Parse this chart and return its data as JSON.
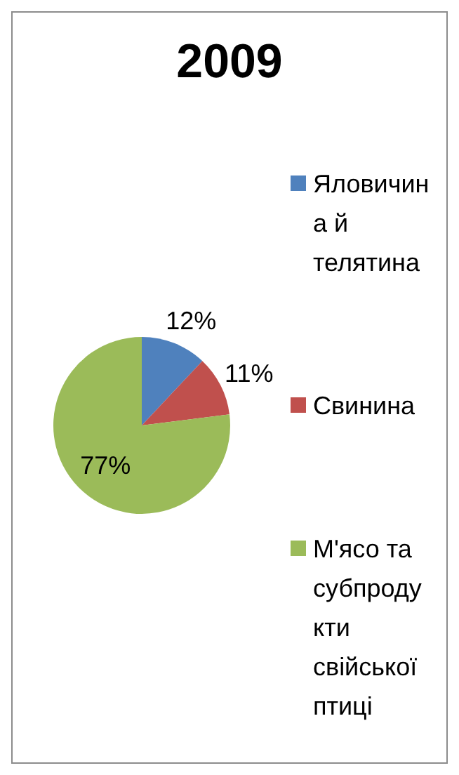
{
  "chart_data": {
    "type": "pie",
    "title": "2009",
    "categories": [
      "Яловичина й телятина",
      "Свинина",
      "М'ясо та субпродукти свійської птиці"
    ],
    "values": [
      12,
      11,
      77
    ],
    "colors": [
      "#4f81bd",
      "#c0504d",
      "#9bbb59"
    ],
    "value_labels": [
      "12%",
      "11%",
      "77%"
    ],
    "legend": "right"
  }
}
